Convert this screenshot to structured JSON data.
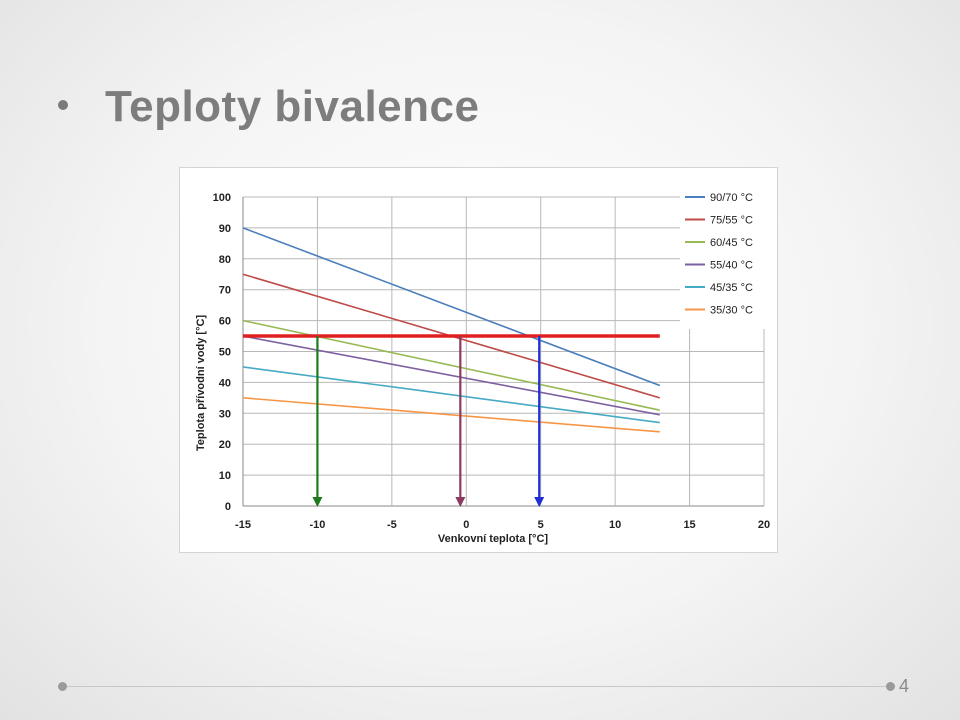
{
  "slide": {
    "title": "Teploty bivalence",
    "page_number": "4"
  },
  "chart_data": {
    "type": "line",
    "xlabel": "Venkovní teplota [°C]",
    "ylabel": "Teplota přívodní  vody [°C]",
    "xlim": [
      -15,
      20
    ],
    "ylim": [
      0,
      100
    ],
    "xticks": [
      -15,
      -10,
      -5,
      0,
      5,
      10,
      15,
      20
    ],
    "yticks": [
      0,
      10,
      20,
      30,
      40,
      50,
      60,
      70,
      80,
      90,
      100
    ],
    "grid": true,
    "legend_position": "top-right",
    "series": [
      {
        "name": "90/70 °C",
        "color": "#4a7ebb",
        "x": [
          -15,
          13
        ],
        "y": [
          90,
          39
        ]
      },
      {
        "name": "75/55 °C",
        "color": "#be4b48",
        "x": [
          -15,
          13
        ],
        "y": [
          75,
          35
        ]
      },
      {
        "name": "60/45 °C",
        "color": "#98b954",
        "x": [
          -15,
          13
        ],
        "y": [
          60,
          31
        ]
      },
      {
        "name": "55/40 °C",
        "color": "#7d60a0",
        "x": [
          -15,
          13
        ],
        "y": [
          55,
          29.5
        ]
      },
      {
        "name": "45/35 °C",
        "color": "#46aac5",
        "x": [
          -15,
          13
        ],
        "y": [
          45,
          27
        ]
      },
      {
        "name": "35/30 °C",
        "color": "#f79646",
        "x": [
          -15,
          13
        ],
        "y": [
          35,
          24
        ]
      }
    ],
    "annotations": {
      "bivalence_line": {
        "y": 55,
        "x": [
          -15,
          13
        ],
        "color": "#e02020"
      },
      "arrows": [
        {
          "x": -10,
          "y_from": 55,
          "y_to": 0,
          "color": "#1f7a1f"
        },
        {
          "x": -0.4,
          "y_from": 55,
          "y_to": 0,
          "color": "#8b3a62"
        },
        {
          "x": 4.9,
          "y_from": 55,
          "y_to": 0,
          "color": "#1f2fd0"
        }
      ]
    }
  }
}
